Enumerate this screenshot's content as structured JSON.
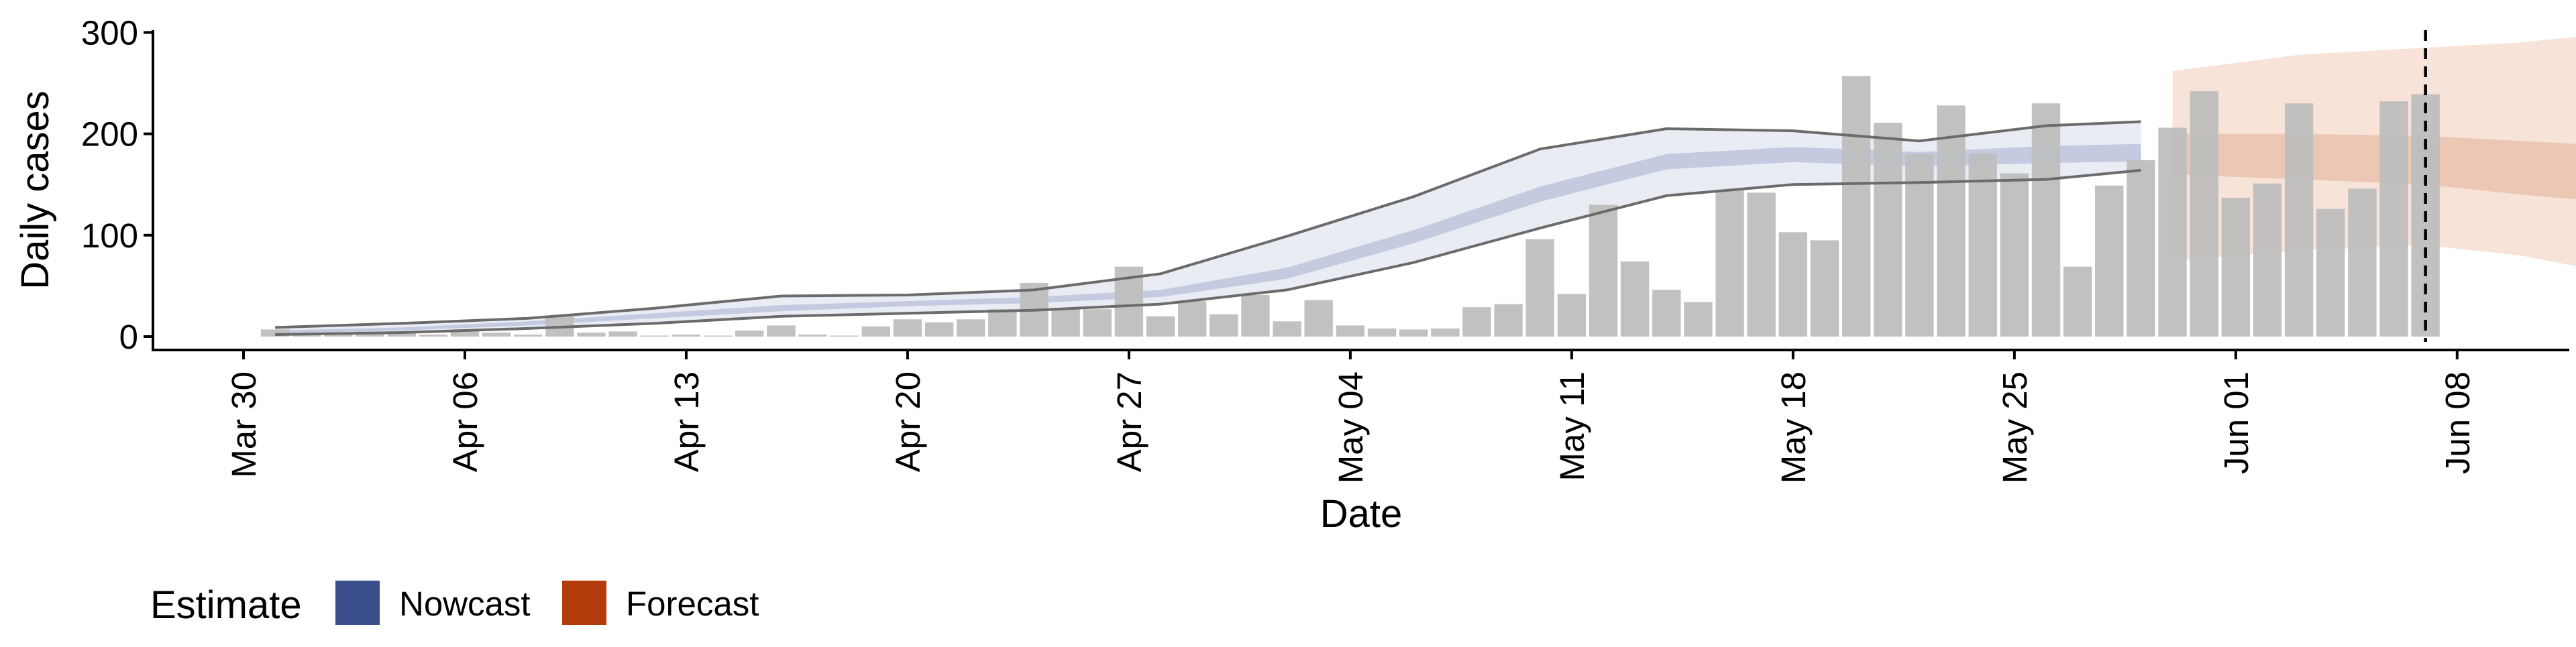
{
  "chart_data": {
    "type": "bar",
    "x_axis": {
      "label": "Date",
      "start": "2020-03-30",
      "end": "2020-06-14",
      "ticks": [
        "Mar 30",
        "Apr 06",
        "Apr 13",
        "Apr 20",
        "Apr 27",
        "May 04",
        "May 11",
        "May 18",
        "May 25",
        "Jun 01",
        "Jun 08"
      ],
      "tick_dates": [
        "2020-03-30",
        "2020-04-06",
        "2020-04-13",
        "2020-04-20",
        "2020-04-27",
        "2020-05-04",
        "2020-05-11",
        "2020-05-18",
        "2020-05-25",
        "2020-06-01",
        "2020-06-08"
      ]
    },
    "y_axis": {
      "label": "Daily cases",
      "ylim": [
        0,
        300
      ],
      "ticks": [
        "0",
        "100",
        "200",
        "300"
      ],
      "tick_values": [
        0,
        100,
        200,
        300
      ]
    },
    "reported_cases": {
      "dates": [
        "2020-03-31",
        "2020-04-01",
        "2020-04-02",
        "2020-04-03",
        "2020-04-04",
        "2020-04-05",
        "2020-04-06",
        "2020-04-07",
        "2020-04-08",
        "2020-04-09",
        "2020-04-10",
        "2020-04-11",
        "2020-04-12",
        "2020-04-13",
        "2020-04-14",
        "2020-04-15",
        "2020-04-16",
        "2020-04-17",
        "2020-04-18",
        "2020-04-19",
        "2020-04-20",
        "2020-04-21",
        "2020-04-22",
        "2020-04-23",
        "2020-04-24",
        "2020-04-25",
        "2020-04-26",
        "2020-04-27",
        "2020-04-28",
        "2020-04-29",
        "2020-04-30",
        "2020-05-01",
        "2020-05-02",
        "2020-05-03",
        "2020-05-04",
        "2020-05-05",
        "2020-05-06",
        "2020-05-07",
        "2020-05-08",
        "2020-05-09",
        "2020-05-10",
        "2020-05-11",
        "2020-05-12",
        "2020-05-13",
        "2020-05-14",
        "2020-05-15",
        "2020-05-16",
        "2020-05-17",
        "2020-05-18",
        "2020-05-19",
        "2020-05-20",
        "2020-05-21",
        "2020-05-22",
        "2020-05-23",
        "2020-05-24",
        "2020-05-25",
        "2020-05-26",
        "2020-05-27",
        "2020-05-28",
        "2020-05-29",
        "2020-05-30",
        "2020-05-31",
        "2020-06-01",
        "2020-06-02",
        "2020-06-03",
        "2020-06-04",
        "2020-06-05",
        "2020-06-06",
        "2020-06-07"
      ],
      "values": [
        7,
        3,
        4,
        5,
        4,
        2,
        5,
        4,
        2,
        20,
        4,
        5,
        1,
        2,
        1,
        6,
        11,
        2,
        1,
        10,
        17,
        14,
        17,
        27,
        53,
        28,
        27,
        69,
        20,
        35,
        22,
        41,
        15,
        36,
        11,
        8,
        7,
        8,
        29,
        32,
        96,
        42,
        130,
        74,
        46,
        34,
        145,
        142,
        103,
        95,
        257,
        211,
        180,
        228,
        181,
        161,
        230,
        69,
        149,
        174,
        206,
        242,
        137,
        151,
        230,
        126,
        146,
        232,
        239
      ]
    },
    "nowcast_end": "2020-05-29",
    "forecast_start": "2020-05-30",
    "forecast_end": "2020-06-13",
    "reference_date": "2020-06-07",
    "estimate": {
      "dates": [
        "2020-03-31",
        "2020-04-04",
        "2020-04-08",
        "2020-04-12",
        "2020-04-16",
        "2020-04-20",
        "2020-04-24",
        "2020-04-28",
        "2020-05-02",
        "2020-05-06",
        "2020-05-10",
        "2020-05-14",
        "2020-05-18",
        "2020-05-22",
        "2020-05-26",
        "2020-05-29",
        "2020-05-30",
        "2020-06-03",
        "2020-06-07",
        "2020-06-10",
        "2020-06-13"
      ],
      "median": [
        4,
        7,
        12,
        20,
        27,
        32,
        35,
        42,
        62,
        98,
        140,
        172,
        179,
        175,
        180,
        181,
        180,
        178,
        175,
        167,
        160
      ],
      "lower_20": [
        3,
        6,
        11,
        18,
        25,
        30,
        33,
        39,
        57,
        92,
        133,
        165,
        172,
        168,
        171,
        173,
        160,
        155,
        150,
        140,
        132
      ],
      "upper_20": [
        6,
        9,
        15,
        23,
        31,
        35,
        39,
        46,
        68,
        105,
        148,
        180,
        187,
        182,
        188,
        190,
        200,
        200,
        198,
        193,
        188
      ],
      "lower_90": [
        2,
        4,
        8,
        13,
        20,
        23,
        26,
        32,
        46,
        73,
        107,
        139,
        150,
        152,
        155,
        164,
        75,
        85,
        90,
        80,
        62
      ],
      "upper_90": [
        9,
        13,
        18,
        28,
        40,
        41,
        46,
        62,
        99,
        138,
        185,
        205,
        203,
        193,
        208,
        212,
        262,
        278,
        285,
        290,
        300
      ]
    },
    "legend": {
      "title": "Estimate",
      "items": [
        {
          "label": "Nowcast",
          "color": "#3a4f8c"
        },
        {
          "label": "Forecast",
          "color": "#b33b0c"
        }
      ]
    },
    "colors": {
      "bars": "#bebebe",
      "nowcast_band": "#c4cbe0",
      "nowcast_band_light": "#eaecf4",
      "forecast_band": "#ecc8b4",
      "forecast_band_light": "#f8e3d8",
      "outline": "#6b6b6b"
    }
  }
}
